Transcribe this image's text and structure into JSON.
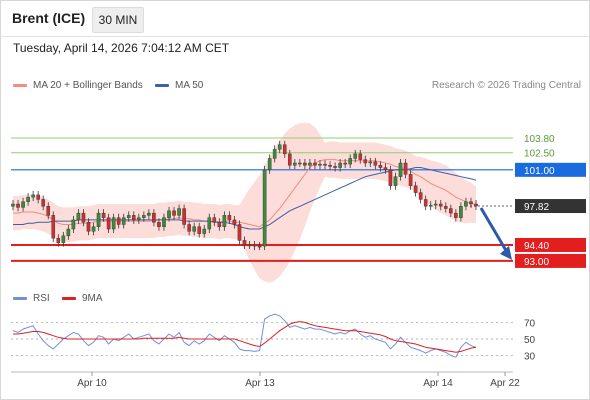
{
  "header": {
    "title": "Brent (ICE)",
    "timeframe": "30 MIN"
  },
  "datetime": "Tuesday, April 14, 2026 7:04:12 AM CET",
  "legend": {
    "ma20_label": "MA 20 + Bollinger Bands",
    "ma50_label": "MA 50",
    "ma20_color": "#f28b82",
    "ma50_color": "#3f5fa8"
  },
  "credit": "Research © 2026 Trading Central",
  "rsi_legend": {
    "rsi_label": "RSI",
    "ma9_label": "9MA",
    "rsi_color": "#6f8fe0",
    "ma9_color": "#e02020"
  },
  "colors": {
    "up_candle": "#3c8a3c",
    "down_candle": "#cc3030",
    "support": "#e31e1e",
    "pivot": "#1a6be0",
    "resistance": "#8fcf6f",
    "last_price": "#333333",
    "forecast_arrow": "#2a5aa8"
  },
  "chart_data": [
    {
      "type": "candlestick",
      "title": "Brent (ICE) 30 MIN",
      "x_ticks": [
        "Apr 10",
        "Apr 13",
        "Apr 14",
        "Apr 22"
      ],
      "ylim": [
        91.5,
        105.2
      ],
      "levels": [
        {
          "name": "resistance",
          "value": 103.8,
          "label": "103.80"
        },
        {
          "name": "resistance",
          "value": 102.5,
          "label": "102.50"
        },
        {
          "name": "pivot",
          "value": 101.0,
          "label": "101.00"
        },
        {
          "name": "last",
          "value": 97.82,
          "label": "97.82"
        },
        {
          "name": "support",
          "value": 94.4,
          "label": "94.40"
        },
        {
          "name": "support",
          "value": 93.0,
          "label": "93.00"
        }
      ],
      "closes": [
        98.0,
        97.7,
        98.2,
        98.6,
        98.8,
        98.4,
        97.8,
        97.0,
        95.0,
        94.6,
        95.2,
        95.8,
        96.6,
        97.2,
        96.4,
        95.6,
        96.0,
        97.2,
        96.8,
        95.8,
        96.8,
        96.2,
        96.8,
        97.0,
        96.6,
        96.8,
        97.0,
        97.2,
        96.4,
        96.0,
        96.8,
        97.4,
        97.0,
        97.6,
        96.2,
        95.6,
        96.0,
        95.4,
        95.8,
        96.8,
        96.4,
        96.0,
        97.0,
        96.6,
        96.2,
        94.8,
        94.4,
        94.4,
        94.3,
        94.3,
        101.0,
        102.0,
        102.8,
        103.2,
        102.4,
        101.4,
        101.6,
        101.6,
        101.4,
        101.6,
        101.4,
        101.5,
        101.4,
        101.3,
        101.2,
        101.6,
        101.5,
        102.0,
        102.4,
        101.9,
        101.6,
        101.7,
        101.4,
        101.2,
        101.0,
        99.6,
        100.4,
        101.6,
        100.6,
        99.6,
        99.0,
        98.4,
        97.8,
        97.9,
        98.0,
        97.8,
        97.6,
        97.2,
        96.8,
        97.8,
        98.2,
        98.0,
        97.82
      ],
      "ma20": [
        97.2,
        97.2,
        97.3,
        97.3,
        97.3,
        97.2,
        97.1,
        96.9,
        96.6,
        96.3,
        96.2,
        96.2,
        96.2,
        96.3,
        96.3,
        96.3,
        96.4,
        96.5,
        96.5,
        96.5,
        96.5,
        96.5,
        96.5,
        96.5,
        96.5,
        96.5,
        96.5,
        96.5,
        96.5,
        96.6,
        96.6,
        96.7,
        96.7,
        96.8,
        96.7,
        96.7,
        96.6,
        96.6,
        96.5,
        96.5,
        96.5,
        96.4,
        96.5,
        96.5,
        96.4,
        96.4,
        96.3,
        96.2,
        96.1,
        96.0,
        96.3,
        96.6,
        97.1,
        97.6,
        98.2,
        98.8,
        99.4,
        100.0,
        100.6,
        101.2,
        101.6,
        101.8,
        101.9,
        101.9,
        101.9,
        101.8,
        101.8,
        101.8,
        101.8,
        101.8,
        101.8,
        101.8,
        101.8,
        101.7,
        101.6,
        101.5,
        101.3,
        101.2,
        101.1,
        100.9,
        100.6,
        100.4,
        100.1,
        99.8,
        99.6,
        99.4,
        99.2,
        98.9,
        98.6,
        98.4,
        98.2,
        98.1,
        97.9
      ],
      "ma50": [
        96.2,
        96.2,
        96.2,
        96.3,
        96.3,
        96.4,
        96.4,
        96.4,
        96.5,
        96.5,
        96.5,
        96.5,
        96.5,
        96.6,
        96.6,
        96.6,
        96.6,
        96.6,
        96.6,
        96.6,
        96.6,
        96.6,
        96.6,
        96.6,
        96.6,
        96.6,
        96.6,
        96.6,
        96.6,
        96.6,
        96.6,
        96.6,
        96.6,
        96.6,
        96.5,
        96.5,
        96.5,
        96.5,
        96.5,
        96.5,
        96.4,
        96.4,
        96.4,
        96.3,
        96.2,
        96.0,
        95.9,
        95.8,
        95.8,
        95.8,
        96.0,
        96.2,
        96.5,
        96.8,
        97.1,
        97.4,
        97.6,
        97.8,
        98.0,
        98.2,
        98.4,
        98.6,
        98.8,
        99.0,
        99.2,
        99.4,
        99.6,
        99.8,
        100.0,
        100.2,
        100.4,
        100.5,
        100.6,
        100.7,
        100.8,
        100.9,
        101.0,
        101.0,
        101.0,
        101.1,
        101.2,
        101.2,
        101.1,
        101.0,
        100.9,
        100.8,
        100.7,
        100.6,
        100.5,
        100.4,
        100.3,
        100.2,
        100.1
      ]
    },
    {
      "type": "line",
      "title": "RSI",
      "x_ticks": [
        "Apr 10",
        "Apr 13",
        "Apr 14",
        "Apr 22"
      ],
      "y_ticks": [
        30,
        50,
        70
      ],
      "ylim": [
        15,
        85
      ],
      "series": [
        {
          "name": "RSI",
          "values": [
            60,
            58,
            62,
            64,
            66,
            56,
            48,
            42,
            38,
            44,
            50,
            54,
            58,
            56,
            48,
            42,
            46,
            54,
            52,
            44,
            50,
            48,
            52,
            56,
            50,
            52,
            54,
            56,
            48,
            44,
            50,
            56,
            52,
            58,
            46,
            42,
            48,
            44,
            48,
            56,
            52,
            48,
            54,
            50,
            46,
            38,
            36,
            36,
            35,
            36,
            74,
            78,
            80,
            78,
            72,
            64,
            66,
            64,
            62,
            64,
            62,
            62,
            60,
            58,
            56,
            58,
            56,
            60,
            62,
            56,
            52,
            54,
            50,
            48,
            46,
            38,
            44,
            52,
            46,
            40,
            38,
            36,
            33,
            36,
            38,
            36,
            34,
            30,
            28,
            40,
            46,
            42,
            40
          ]
        },
        {
          "name": "9MA",
          "values": [
            56,
            56,
            57,
            58,
            59,
            59,
            58,
            56,
            54,
            52,
            51,
            50,
            50,
            50,
            50,
            50,
            50,
            50,
            50,
            50,
            50,
            50,
            50,
            50,
            50,
            50,
            51,
            51,
            51,
            51,
            51,
            51,
            51,
            52,
            51,
            50,
            50,
            50,
            50,
            50,
            50,
            50,
            50,
            50,
            50,
            48,
            46,
            44,
            42,
            41,
            45,
            50,
            55,
            60,
            64,
            68,
            70,
            71,
            70,
            68,
            66,
            65,
            64,
            63,
            62,
            61,
            60,
            60,
            60,
            59,
            58,
            57,
            56,
            55,
            53,
            50,
            48,
            47,
            46,
            45,
            44,
            42,
            40,
            39,
            38,
            37,
            36,
            35,
            34,
            35,
            37,
            39,
            40
          ]
        }
      ]
    }
  ]
}
